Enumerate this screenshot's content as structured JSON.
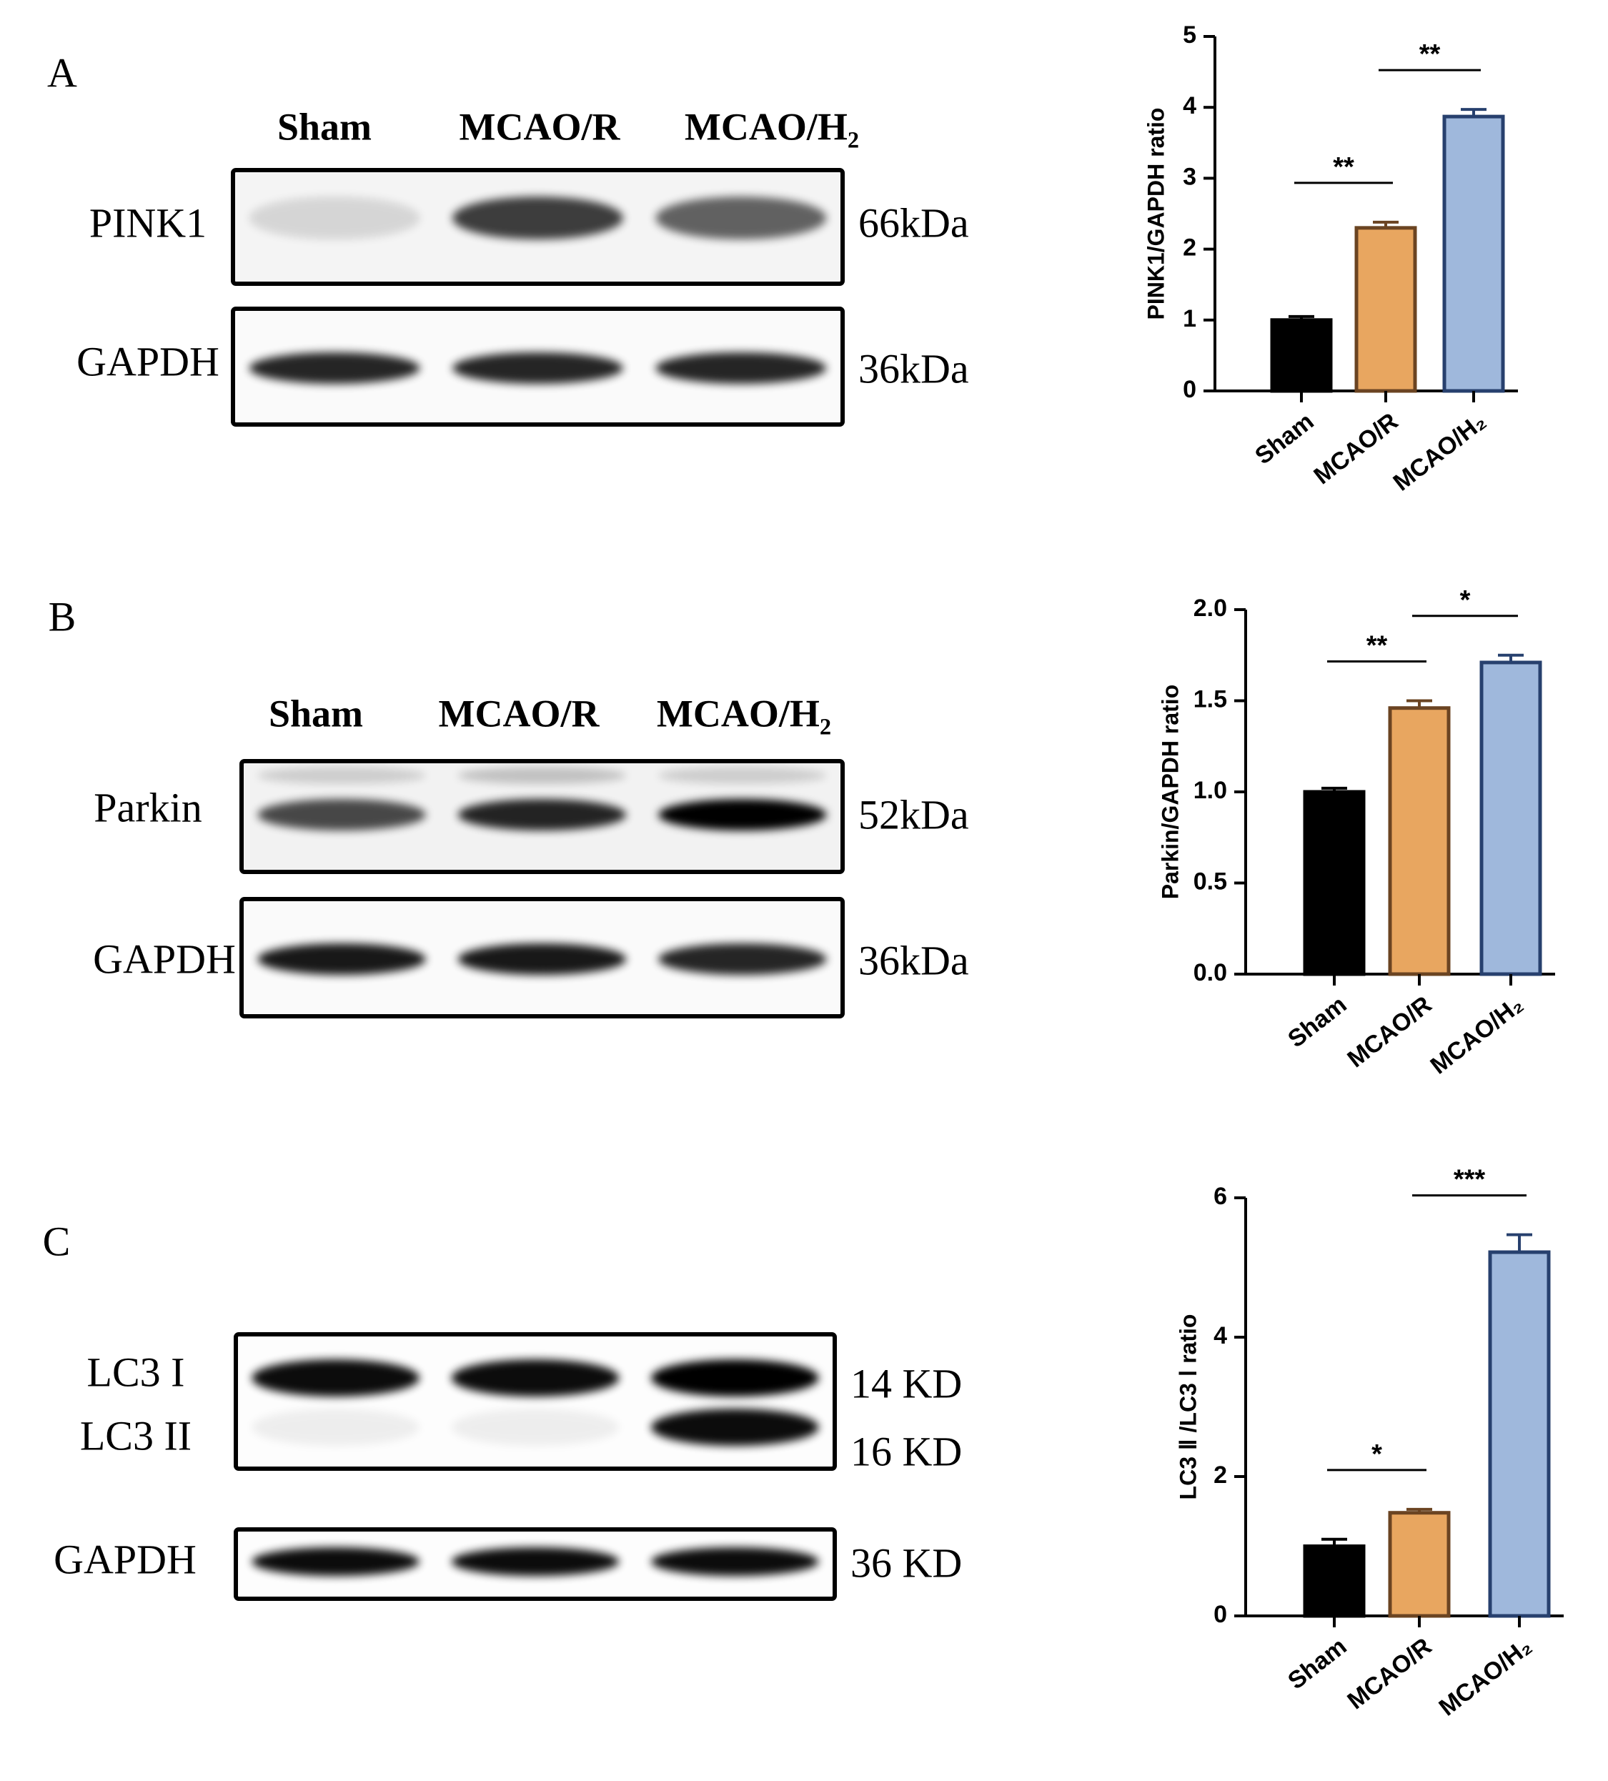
{
  "blots": [
    {
      "panel": "A",
      "lanes": [
        "Sham",
        "MCAO/R",
        "MCAO/H₂"
      ],
      "rows": [
        {
          "labels": [
            "PINK1"
          ],
          "sizes": [
            "66kDa"
          ]
        },
        {
          "labels": [
            "GAPDH"
          ],
          "sizes": [
            "36kDa"
          ]
        }
      ]
    },
    {
      "panel": "B",
      "lanes": [
        "Sham",
        "MCAO/R",
        "MCAO/H₂"
      ],
      "rows": [
        {
          "labels": [
            "Parkin"
          ],
          "sizes": [
            "52kDa"
          ]
        },
        {
          "labels": [
            "GAPDH"
          ],
          "sizes": [
            "36kDa"
          ]
        }
      ]
    },
    {
      "panel": "C",
      "rows": [
        {
          "labels": [
            "LC3 I",
            "LC3 II"
          ],
          "sizes": [
            "14 KD",
            "16 KD"
          ]
        },
        {
          "labels": [
            "GAPDH"
          ],
          "sizes": [
            "36 KD"
          ]
        }
      ]
    }
  ],
  "chart_data": [
    {
      "type": "bar",
      "y_label": "PINK1/GAPDH ratio",
      "categories": [
        "Sham",
        "MCAO/R",
        "MCAO/H₂"
      ],
      "values": [
        1.0,
        2.3,
        3.87
      ],
      "errors": [
        0.05,
        0.08,
        0.1
      ],
      "colors": [
        "#000000",
        "#e8a660",
        "#9fb8dc"
      ],
      "edge_colors": [
        "#000000",
        "#6b4422",
        "#27406e"
      ],
      "ylim": [
        0,
        5
      ],
      "yticks": [
        0,
        1,
        2,
        3,
        4,
        5
      ],
      "significance": [
        {
          "label": "**",
          "between": [
            0,
            1
          ]
        },
        {
          "label": "**",
          "between": [
            1,
            2
          ]
        }
      ]
    },
    {
      "type": "bar",
      "y_label": "Parkin/GAPDH ratio",
      "categories": [
        "Sham",
        "MCAO/R",
        "MCAO/H₂"
      ],
      "values": [
        1.0,
        1.46,
        1.71
      ],
      "errors": [
        0.02,
        0.04,
        0.04
      ],
      "colors": [
        "#000000",
        "#e8a660",
        "#9fb8dc"
      ],
      "edge_colors": [
        "#000000",
        "#6b4422",
        "#27406e"
      ],
      "ylim": [
        0,
        2
      ],
      "yticks": [
        {
          "value": 0,
          "label": "0.0"
        },
        0.5,
        {
          "value": 1,
          "label": "1.0"
        },
        1.5,
        {
          "value": 2,
          "label": "2.0"
        }
      ],
      "significance": [
        {
          "label": "**",
          "between": [
            0,
            1
          ]
        },
        {
          "label": "*",
          "between": [
            1,
            2
          ]
        }
      ]
    },
    {
      "type": "bar",
      "y_label": "LC3 Ⅱ /LC3 Ⅰ ratio",
      "categories": [
        "Sham",
        "MCAO/R",
        "MCAO/H₂"
      ],
      "values": [
        1.0,
        1.48,
        5.22
      ],
      "errors": [
        0.1,
        0.05,
        0.25
      ],
      "colors": [
        "#000000",
        "#e8a660",
        "#9fb8dc"
      ],
      "edge_colors": [
        "#000000",
        "#6b4422",
        "#27406e"
      ],
      "ylim": [
        0,
        6
      ],
      "yticks": [
        0,
        2,
        4,
        6
      ],
      "significance": [
        {
          "label": "*",
          "between": [
            0,
            1
          ]
        },
        {
          "label": "***",
          "between": [
            1,
            2
          ]
        }
      ]
    }
  ]
}
